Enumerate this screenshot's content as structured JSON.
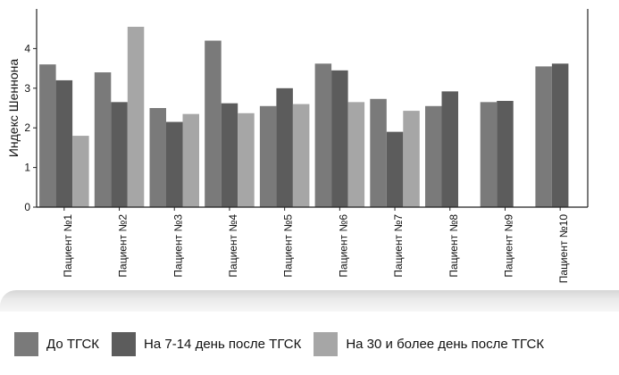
{
  "chart_data": {
    "type": "bar",
    "title": "",
    "xlabel": "",
    "ylabel": "Индекс Шеннона",
    "ylim": [
      0,
      5
    ],
    "yticks": [
      0,
      1,
      2,
      3,
      4
    ],
    "grid": false,
    "legend_position": "bottom",
    "categories": [
      "Пациент №1",
      "Пациент №2",
      "Пациент №3",
      "Пациент №4",
      "Пациент №5",
      "Пациент №6",
      "Пациент №7",
      "Пациент №8",
      "Пациент №9",
      "Пациент №10"
    ],
    "series": [
      {
        "name": "До ТГСК",
        "color": "#7a7a7a",
        "values": [
          3.6,
          3.4,
          2.5,
          4.2,
          2.55,
          3.62,
          2.73,
          2.55,
          2.65,
          3.55
        ]
      },
      {
        "name": "На 7-14 день после ТГСК",
        "color": "#5c5c5c",
        "values": [
          3.2,
          2.65,
          2.15,
          2.62,
          3.0,
          3.45,
          1.9,
          2.92,
          2.68,
          3.62
        ]
      },
      {
        "name": "На 30 и более день после ТГСК",
        "color": "#a6a6a6",
        "values": [
          1.8,
          4.55,
          2.35,
          2.37,
          2.6,
          2.65,
          2.43,
          null,
          null,
          null
        ]
      }
    ]
  }
}
